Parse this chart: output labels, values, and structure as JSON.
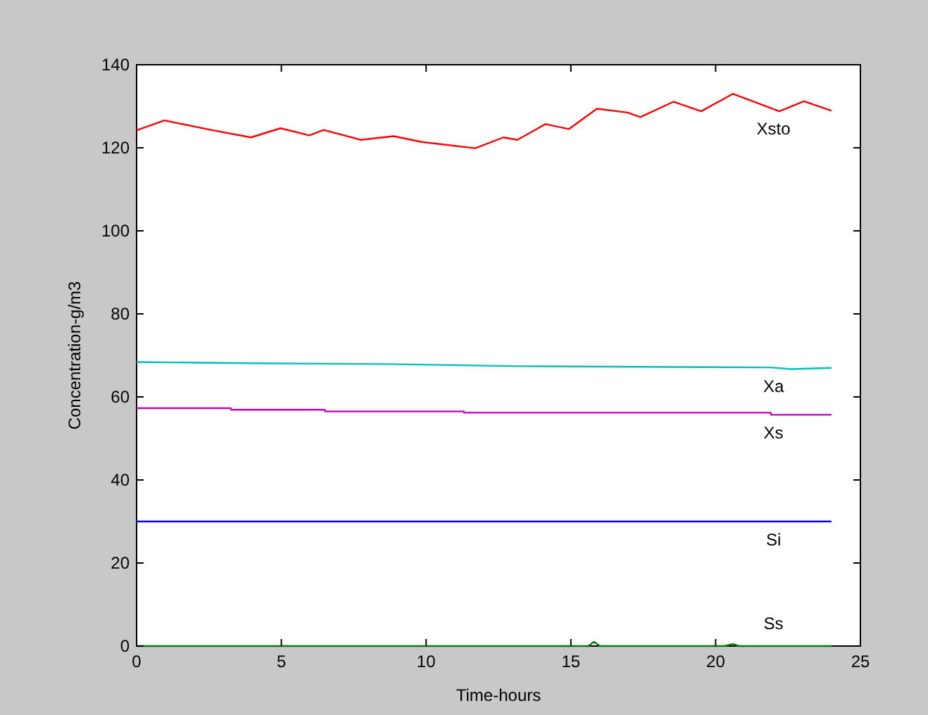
{
  "chart_data": {
    "type": "line",
    "xlabel": "Time-hours",
    "ylabel": "Concentration-g/m3",
    "xlim": [
      0,
      25
    ],
    "ylim": [
      0,
      140
    ],
    "xticks": [
      0,
      5,
      10,
      15,
      20,
      25
    ],
    "yticks": [
      0,
      20,
      40,
      60,
      80,
      100,
      120,
      140
    ],
    "grid": false,
    "marker": "none",
    "line_style": "solid",
    "series": [
      {
        "name": "Xsto",
        "color": "#ff0000",
        "x": [
          0,
          0.96,
          2.57,
          3.95,
          4.97,
          5.97,
          6.46,
          7.75,
          8.88,
          9.85,
          11.7,
          12.67,
          13.15,
          14.12,
          14.93,
          15.9,
          16.95,
          17.4,
          18.55,
          19.5,
          20.6,
          22.2,
          23.05,
          24
        ],
        "values": [
          124.2,
          126.6,
          124.3,
          122.5,
          124.7,
          123,
          124.3,
          121.9,
          122.8,
          121.4,
          119.9,
          122.5,
          121.9,
          125.7,
          124.5,
          129.4,
          128.5,
          127.4,
          131.1,
          128.8,
          133,
          128.8,
          131.2,
          128.9
        ]
      },
      {
        "name": "Xa",
        "color": "#00bfbf",
        "x": [
          0,
          4.2,
          8.7,
          13.2,
          18.5,
          21.9,
          22.6,
          24
        ],
        "values": [
          68.4,
          68.1,
          67.9,
          67.4,
          67.2,
          67.1,
          66.7,
          67.0
        ]
      },
      {
        "name": "Xs",
        "color": "#bf00bf",
        "x": [
          0,
          3.25,
          3.26,
          6.5,
          6.51,
          11.3,
          11.31,
          21.9,
          21.91,
          24
        ],
        "values": [
          57.3,
          57.3,
          56.9,
          56.9,
          56.5,
          56.5,
          56.2,
          56.2,
          55.7,
          55.7
        ]
      },
      {
        "name": "Si",
        "color": "#0000ff",
        "x": [
          0,
          24
        ],
        "values": [
          30,
          30
        ]
      },
      {
        "name": "Ss",
        "color": "#008000",
        "x": [
          0,
          15.6,
          15.8,
          16.0,
          20.3,
          20.6,
          20.8,
          24
        ],
        "values": [
          0,
          0,
          1,
          0,
          0,
          0.5,
          0,
          0
        ]
      }
    ]
  }
}
